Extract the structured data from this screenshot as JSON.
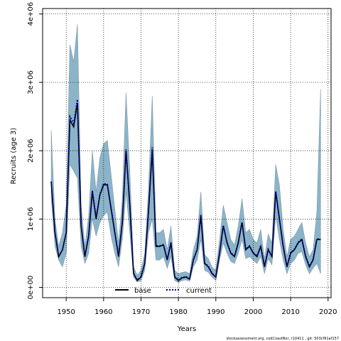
{
  "chart_data": {
    "type": "area",
    "xlabel": "Years",
    "ylabel": "Recruits (age 3)",
    "xlim": [
      1943.7,
      2020.8
    ],
    "ylim": [
      -150000,
      4080000
    ],
    "x_ticks": [
      1950,
      1960,
      1970,
      1980,
      1990,
      2000,
      2010,
      2020
    ],
    "x_tick_labels": [
      "1950",
      "1960",
      "1970",
      "1980",
      "1990",
      "2000",
      "2010",
      "2020"
    ],
    "y_ticks": [
      0,
      1000000,
      2000000,
      3000000,
      4000000
    ],
    "y_tick_labels": [
      "0e+00",
      "1e+06",
      "2e+06",
      "3e+06",
      "4e+06"
    ],
    "grid": true,
    "legend_position": "bottom-center",
    "x": [
      1946,
      1947,
      1948,
      1949,
      1950,
      1951,
      1952,
      1953,
      1954,
      1955,
      1956,
      1957,
      1958,
      1959,
      1960,
      1961,
      1962,
      1963,
      1964,
      1965,
      1966,
      1967,
      1968,
      1969,
      1970,
      1971,
      1972,
      1973,
      1974,
      1975,
      1976,
      1977,
      1978,
      1979,
      1980,
      1981,
      1982,
      1983,
      1984,
      1985,
      1986,
      1987,
      1988,
      1989,
      1990,
      1991,
      1992,
      1993,
      1994,
      1995,
      1996,
      1997,
      1998,
      1999,
      2000,
      2001,
      2002,
      2003,
      2004,
      2005,
      2006,
      2007,
      2008,
      2009,
      2010,
      2011,
      2012,
      2013,
      2014,
      2015,
      2016,
      2017,
      2018
    ],
    "series": [
      {
        "name": "base",
        "color": "#000000",
        "style": "solid",
        "values": [
          1550000,
          800000,
          450000,
          550000,
          800000,
          2450000,
          2350000,
          2700000,
          900000,
          450000,
          750000,
          1400000,
          1000000,
          1350000,
          1500000,
          1500000,
          1150000,
          800000,
          450000,
          950000,
          2000000,
          1200000,
          200000,
          100000,
          150000,
          350000,
          1100000,
          2000000,
          600000,
          600000,
          620000,
          400000,
          650000,
          150000,
          100000,
          140000,
          150000,
          120000,
          400000,
          550000,
          1050000,
          350000,
          300000,
          200000,
          150000,
          500000,
          900000,
          650000,
          500000,
          450000,
          650000,
          950000,
          550000,
          600000,
          500000,
          450000,
          600000,
          300000,
          550000,
          450000,
          1400000,
          1000000,
          600000,
          300000,
          500000,
          550000,
          650000,
          700000,
          450000,
          300000,
          400000,
          700000,
          700000
        ]
      },
      {
        "name": "current",
        "color": "#00008b",
        "style": "dashed",
        "values": [
          1550000,
          800000,
          450000,
          550000,
          800000,
          2500000,
          2400000,
          2750000,
          900000,
          450000,
          760000,
          1420000,
          1020000,
          1360000,
          1520000,
          1510000,
          1160000,
          810000,
          460000,
          960000,
          2020000,
          1210000,
          210000,
          110000,
          160000,
          360000,
          1110000,
          2050000,
          610000,
          610000,
          630000,
          410000,
          660000,
          160000,
          110000,
          150000,
          160000,
          130000,
          410000,
          560000,
          1060000,
          360000,
          310000,
          210000,
          160000,
          510000,
          910000,
          660000,
          510000,
          460000,
          660000,
          960000,
          560000,
          610000,
          510000,
          460000,
          610000,
          310000,
          560000,
          460000,
          1410000,
          1010000,
          610000,
          310000,
          510000,
          560000,
          660000,
          710000,
          460000,
          310000,
          410000,
          710000,
          710000
        ]
      }
    ],
    "band": {
      "color": "#8bb4c8",
      "lower": [
        1300000,
        600000,
        400000,
        300000,
        500000,
        1800000,
        1700000,
        1600000,
        600000,
        350000,
        500000,
        1000000,
        750000,
        950000,
        1050000,
        1100000,
        750000,
        500000,
        300000,
        700000,
        1400000,
        800000,
        150000,
        80000,
        100000,
        250000,
        800000,
        1000000,
        400000,
        400000,
        450000,
        280000,
        450000,
        100000,
        70000,
        100000,
        110000,
        90000,
        300000,
        400000,
        700000,
        250000,
        220000,
        150000,
        100000,
        400000,
        650000,
        500000,
        380000,
        350000,
        500000,
        700000,
        420000,
        450000,
        400000,
        350000,
        450000,
        200000,
        420000,
        330000,
        1050000,
        700000,
        400000,
        200000,
        350000,
        400000,
        500000,
        520000,
        330000,
        200000,
        280000,
        350000,
        200000
      ],
      "upper": [
        2300000,
        1000000,
        600000,
        800000,
        1200000,
        3550000,
        3300000,
        3850000,
        1200000,
        600000,
        1050000,
        2000000,
        1400000,
        1900000,
        2100000,
        2150000,
        1650000,
        1150000,
        650000,
        1300000,
        2850000,
        1700000,
        300000,
        180000,
        250000,
        500000,
        1450000,
        2800000,
        800000,
        800000,
        850000,
        550000,
        900000,
        250000,
        200000,
        220000,
        230000,
        200000,
        550000,
        750000,
        1400000,
        480000,
        420000,
        300000,
        250000,
        700000,
        1200000,
        950000,
        700000,
        620000,
        900000,
        1300000,
        800000,
        850000,
        700000,
        650000,
        850000,
        420000,
        780000,
        650000,
        1800000,
        1500000,
        850000,
        450000,
        700000,
        750000,
        850000,
        950000,
        650000,
        450000,
        550000,
        1100000,
        2900000
      ]
    },
    "footnote": "stockassessment.org, codCoastNor, r10411 , git: 503cf91af157"
  }
}
